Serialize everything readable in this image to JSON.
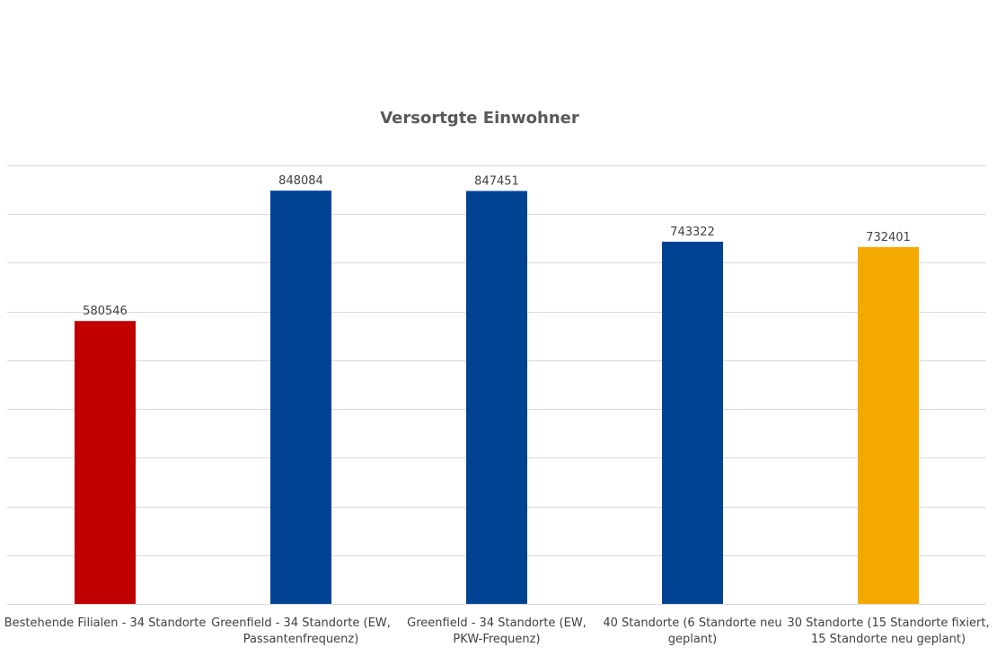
{
  "chart_data": {
    "type": "bar",
    "title": "Versortgte Einwohner",
    "categories": [
      [
        "Bestehende Filialen - 34 Standorte"
      ],
      [
        "Greenfield - 34 Standorte (EW,",
        "Passantenfrequenz)"
      ],
      [
        "Greenfield - 34 Standorte (EW,",
        "PKW-Frequenz)"
      ],
      [
        "40 Standorte (6 Standorte neu",
        "geplant)"
      ],
      [
        "30 Standorte (15 Standorte fixiert,",
        "15 Standorte neu geplant)"
      ]
    ],
    "values": [
      580546,
      848084,
      847451,
      743322,
      732401
    ],
    "data_labels": [
      "580546",
      "848084",
      "847451",
      "743322",
      "732401"
    ],
    "colors": [
      "#c00000",
      "#004393",
      "#004393",
      "#004393",
      "#f4a900"
    ],
    "ylim": [
      0,
      900000
    ],
    "y_grid_step": 100000,
    "y_tick_labels_visible": false,
    "grid": true,
    "legend": "none",
    "xlabel": "",
    "ylabel": ""
  }
}
